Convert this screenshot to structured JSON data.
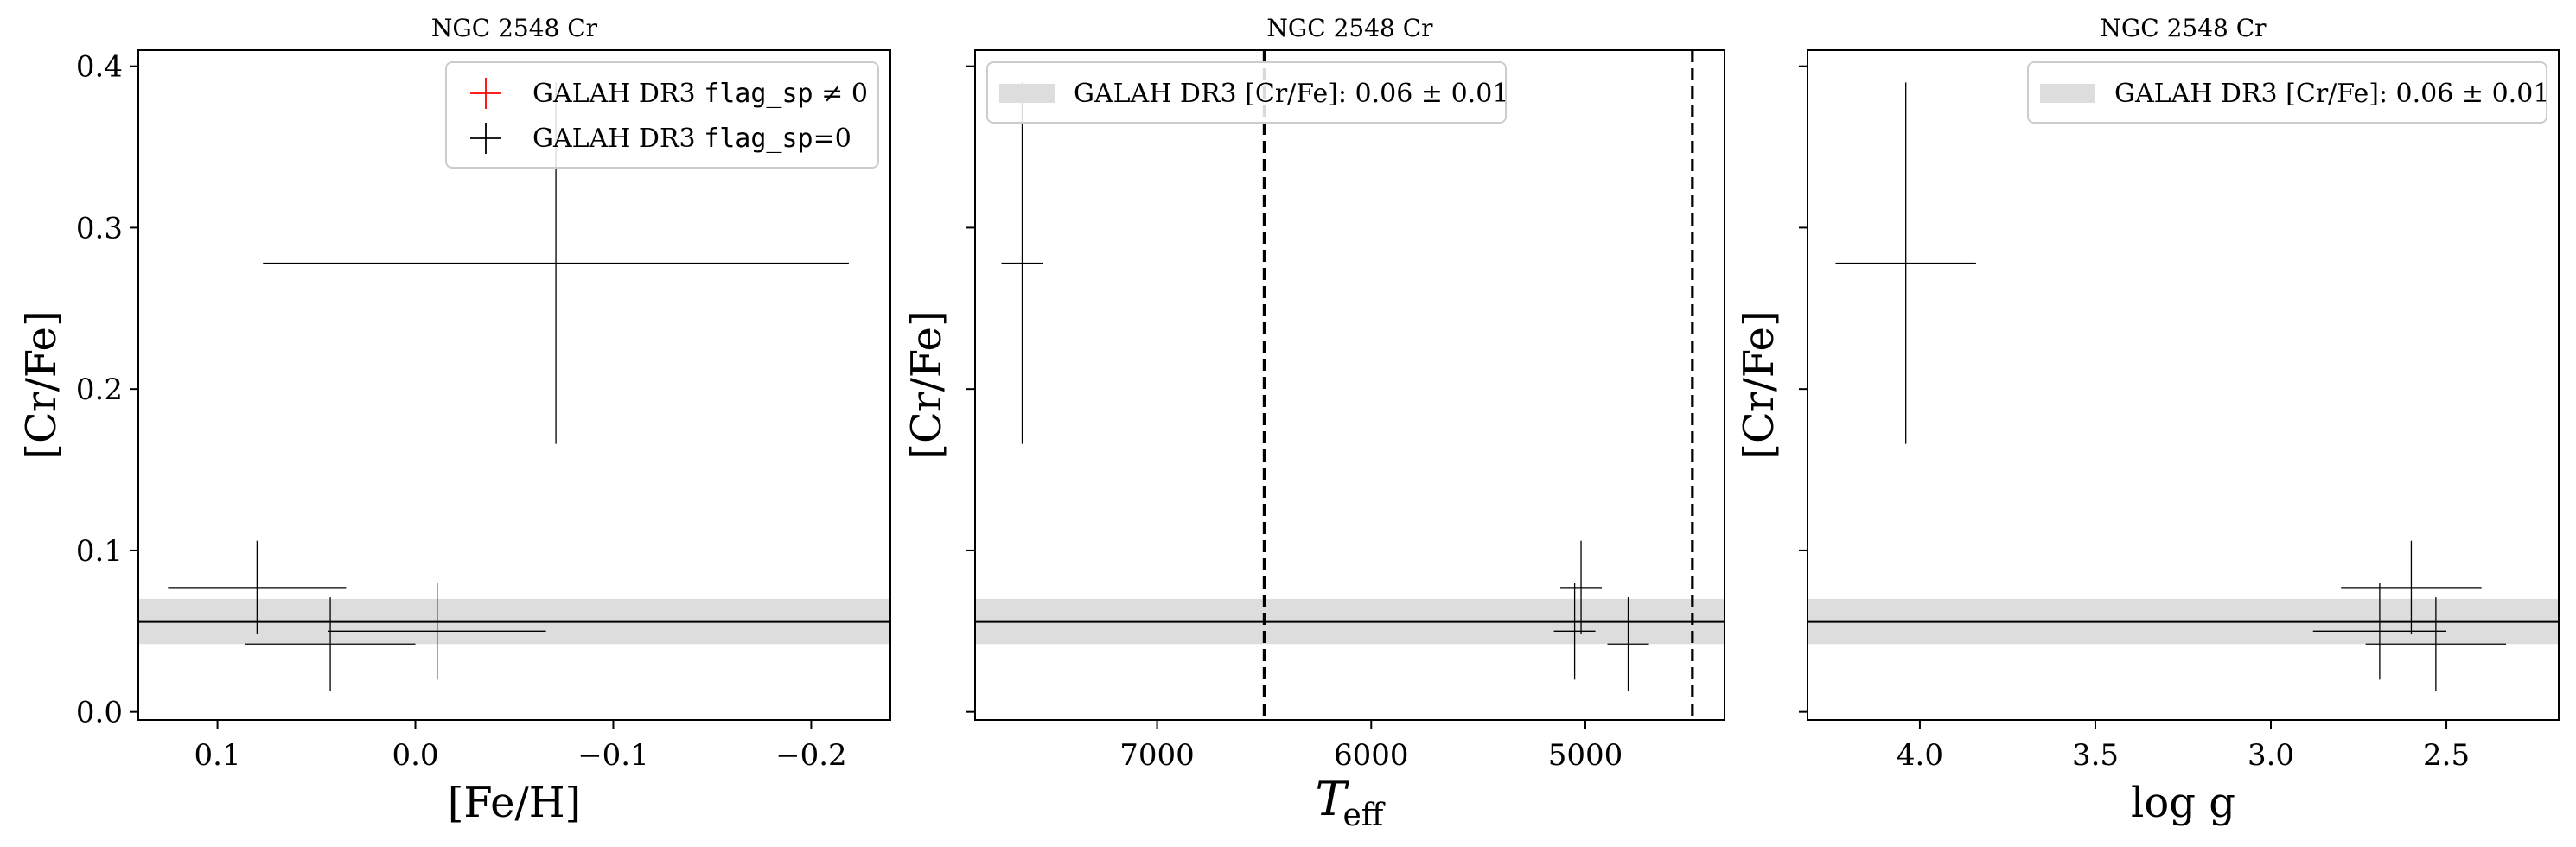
{
  "chart_data": [
    {
      "type": "scatter",
      "title": "NGC 2548 Cr",
      "xlabel": "[Fe/H]",
      "ylabel": "[Cr/Fe]",
      "xlim": [
        0.14,
        -0.24
      ],
      "ylim": [
        -0.005,
        0.41
      ],
      "x_ticks": [
        0.1,
        0.0,
        -0.1,
        -0.2
      ],
      "x_tick_labels": [
        "0.1",
        "0.0",
        "−0.1",
        "−0.2"
      ],
      "y_ticks": [
        0.0,
        0.1,
        0.2,
        0.3,
        0.4
      ],
      "y_tick_labels": [
        "0.0",
        "0.1",
        "0.2",
        "0.3",
        "0.4"
      ],
      "show_y_tick_labels": true,
      "legend_position": "top-right",
      "legend": [
        {
          "label": "GALAH DR3 ",
          "code": "flag_sp",
          "suffix": " ≠ 0",
          "color": "#ff0000",
          "marker": "plus"
        },
        {
          "label": "GALAH DR3 ",
          "code": "flag_sp",
          "suffix": "=0",
          "color": "#000000",
          "marker": "plus"
        }
      ],
      "band": {
        "center": 0.056,
        "err": 0.014,
        "color": "#dddddd"
      },
      "vlines": [],
      "points": [
        {
          "x": 0.08,
          "xerr": 0.045,
          "y": 0.077,
          "yerr": 0.029
        },
        {
          "x": 0.043,
          "xerr": 0.043,
          "y": 0.042,
          "yerr": 0.029
        },
        {
          "x": -0.011,
          "xerr": 0.055,
          "y": 0.05,
          "yerr": 0.03
        },
        {
          "x": -0.071,
          "xerr": 0.148,
          "y": 0.278,
          "yerr": 0.112
        }
      ]
    },
    {
      "type": "scatter",
      "title": "NGC 2548 Cr",
      "xlabel": "T_eff",
      "xlabel_main": "T",
      "xlabel_sub": "eff",
      "ylabel": "[Cr/Fe]",
      "xlim": [
        7850,
        4350
      ],
      "ylim": [
        -0.005,
        0.41
      ],
      "x_ticks": [
        7000,
        6000,
        5000
      ],
      "x_tick_labels": [
        "7000",
        "6000",
        "5000"
      ],
      "y_ticks": [
        0.0,
        0.1,
        0.2,
        0.3,
        0.4
      ],
      "y_tick_labels": [
        "0.0",
        "0.1",
        "0.2",
        "0.3",
        "0.4"
      ],
      "show_y_tick_labels": false,
      "legend_position": "top-left",
      "legend": [
        {
          "label": "GALAH DR3 [Cr/Fe]: 0.06 ± 0.01",
          "code": "",
          "suffix": "",
          "color": "#dddddd",
          "marker": "band"
        }
      ],
      "band": {
        "center": 0.056,
        "err": 0.014,
        "color": "#dddddd"
      },
      "vlines": [
        6500,
        4500
      ],
      "points": [
        {
          "x": 7630,
          "xerr": 0,
          "y": 0.278,
          "yerr": 0.112
        },
        {
          "x": 5020,
          "xerr": 0,
          "y": 0.077,
          "yerr": 0.029
        },
        {
          "x": 5050,
          "xerr": 0,
          "y": 0.05,
          "yerr": 0.03
        },
        {
          "x": 4800,
          "xerr": 0,
          "y": 0.042,
          "yerr": 0.029
        }
      ]
    },
    {
      "type": "scatter",
      "title": "NGC 2548 Cr",
      "xlabel": "log g",
      "ylabel": "[Cr/Fe]",
      "xlim": [
        4.32,
        2.18
      ],
      "ylim": [
        -0.005,
        0.41
      ],
      "x_ticks": [
        4.0,
        3.5,
        3.0,
        2.5
      ],
      "x_tick_labels": [
        "4.0",
        "3.5",
        "3.0",
        "2.5"
      ],
      "y_ticks": [
        0.0,
        0.1,
        0.2,
        0.3,
        0.4
      ],
      "y_tick_labels": [
        "0.0",
        "0.1",
        "0.2",
        "0.3",
        "0.4"
      ],
      "show_y_tick_labels": false,
      "legend_position": "top-right",
      "legend": [
        {
          "label": "GALAH DR3 [Cr/Fe]: 0.06 ± 0.01",
          "code": "",
          "suffix": "",
          "color": "#dddddd",
          "marker": "band"
        }
      ],
      "band": {
        "center": 0.056,
        "err": 0.014,
        "color": "#dddddd"
      },
      "vlines": [],
      "points": [
        {
          "x": 4.04,
          "xerr": 0.2,
          "y": 0.278,
          "yerr": 0.112
        },
        {
          "x": 2.6,
          "xerr": 0.2,
          "y": 0.077,
          "yerr": 0.029
        },
        {
          "x": 2.69,
          "xerr": 0.19,
          "y": 0.05,
          "yerr": 0.03
        },
        {
          "x": 2.53,
          "xerr": 0.2,
          "y": 0.042,
          "yerr": 0.029
        }
      ]
    }
  ]
}
